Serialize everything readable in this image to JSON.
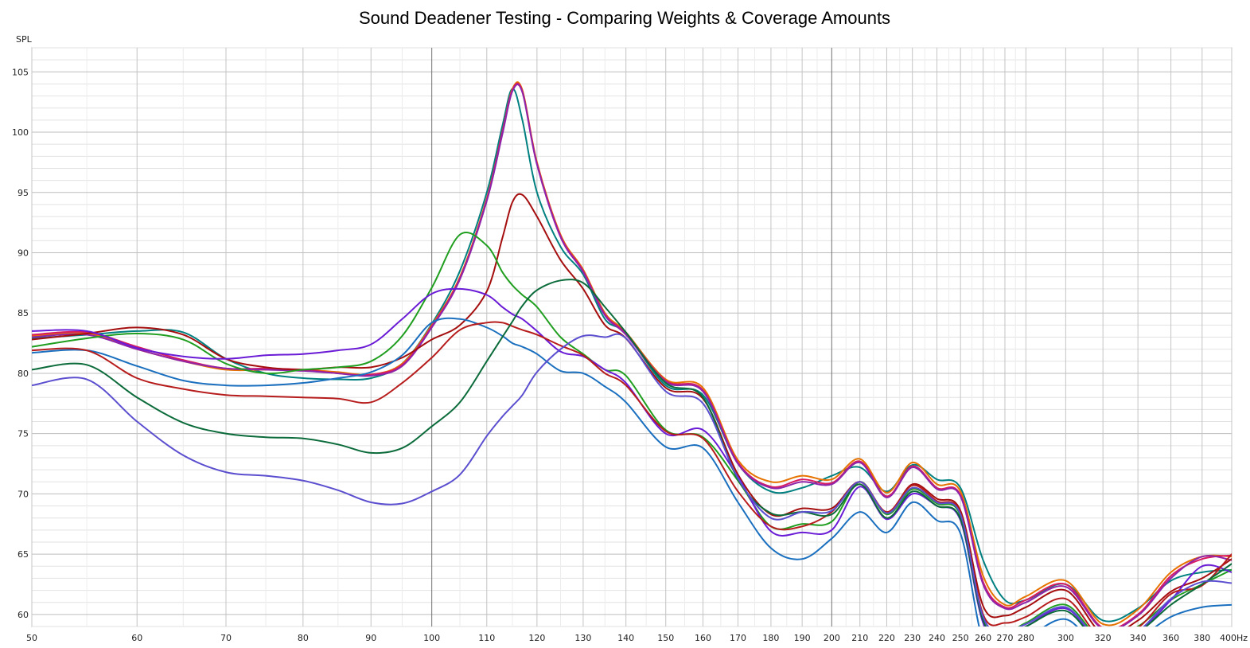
{
  "chart_data": {
    "type": "line",
    "title": "Sound Deadener Testing - Comparing Weights & Coverage Amounts",
    "ylabel": "SPL",
    "xunit": "Hz",
    "xscale": "log",
    "xlim": [
      50,
      400
    ],
    "ylim": [
      59,
      107
    ],
    "grid": true,
    "x_ticks": [
      50,
      60,
      70,
      80,
      90,
      100,
      110,
      120,
      130,
      140,
      150,
      160,
      170,
      180,
      190,
      200,
      210,
      220,
      230,
      240,
      250,
      260,
      270,
      280,
      300,
      320,
      340,
      360,
      380,
      400
    ],
    "x_tick_labels": [
      "50",
      "60",
      "70",
      "80",
      "90",
      "100",
      "110",
      "120",
      "130",
      "140",
      "150",
      "160",
      "170",
      "180",
      "190",
      "200",
      "210",
      "220",
      "230",
      "240",
      "250",
      "260",
      "270",
      "280",
      "300",
      "320",
      "340",
      "360",
      "380",
      "400Hz"
    ],
    "y_ticks": [
      60,
      65,
      70,
      75,
      80,
      85,
      90,
      95,
      100,
      105
    ],
    "series": [
      {
        "color": "#008080",
        "x": [
          50,
          55,
          60,
          65,
          70,
          75,
          80,
          85,
          90,
          95,
          100,
          105,
          110,
          113,
          115,
          117,
          120,
          125,
          130,
          135,
          140,
          150,
          160,
          170,
          180,
          190,
          200,
          210,
          220,
          230,
          240,
          250,
          260,
          270,
          280,
          300,
          320,
          340,
          360,
          380,
          400
        ],
        "y": [
          82.9,
          83.2,
          83.5,
          83.4,
          81.2,
          80.0,
          79.6,
          79.5,
          79.6,
          80.8,
          84.1,
          88.5,
          95.0,
          100.5,
          103.6,
          101.0,
          95.0,
          90.5,
          88.2,
          84.5,
          83.3,
          79.0,
          78.2,
          72.5,
          70.2,
          70.5,
          71.5,
          72.2,
          70.2,
          72.4,
          71.2,
          70.5,
          64.5,
          61.2,
          61.2,
          62.5,
          59.5,
          60.5,
          62.8,
          63.5,
          63.7
        ]
      },
      {
        "color": "#e67300",
        "x": [
          50,
          55,
          60,
          65,
          70,
          75,
          80,
          85,
          90,
          95,
          100,
          105,
          110,
          113,
          115,
          117,
          120,
          125,
          130,
          135,
          140,
          150,
          160,
          170,
          180,
          190,
          200,
          210,
          220,
          230,
          240,
          250,
          260,
          270,
          280,
          300,
          320,
          340,
          360,
          380,
          400
        ],
        "y": [
          83.1,
          83.3,
          82.0,
          81.0,
          80.3,
          80.3,
          80.3,
          80.1,
          79.9,
          80.8,
          84.0,
          88.0,
          94.5,
          100.0,
          103.6,
          103.5,
          97.5,
          91.5,
          88.6,
          85.0,
          83.4,
          79.5,
          78.8,
          72.8,
          71.0,
          71.5,
          71.2,
          72.9,
          70.1,
          72.6,
          70.8,
          70.2,
          63.2,
          60.8,
          61.5,
          62.8,
          59.2,
          60.4,
          63.5,
          64.8,
          64.8
        ]
      },
      {
        "color": "#d81b60",
        "x": [
          50,
          55,
          60,
          65,
          70,
          75,
          80,
          85,
          90,
          95,
          100,
          105,
          110,
          113,
          115,
          117,
          120,
          125,
          130,
          135,
          140,
          150,
          160,
          170,
          180,
          190,
          200,
          210,
          220,
          230,
          240,
          250,
          260,
          270,
          280,
          300,
          320,
          340,
          360,
          380,
          400
        ],
        "y": [
          83.2,
          83.4,
          82.2,
          81.1,
          80.4,
          80.4,
          80.3,
          80.0,
          79.9,
          80.7,
          83.9,
          87.9,
          94.4,
          100.0,
          103.5,
          103.4,
          97.4,
          91.4,
          88.5,
          84.9,
          83.3,
          79.4,
          78.6,
          72.6,
          70.6,
          71.2,
          70.9,
          72.7,
          69.8,
          72.3,
          70.5,
          69.9,
          62.7,
          60.6,
          61.2,
          62.5,
          58.9,
          60.0,
          63.2,
          64.6,
          64.9
        ]
      },
      {
        "color": "#8e24aa",
        "x": [
          50,
          55,
          60,
          65,
          70,
          75,
          80,
          85,
          90,
          95,
          100,
          105,
          110,
          113,
          115,
          117,
          120,
          125,
          130,
          135,
          140,
          150,
          160,
          170,
          180,
          190,
          200,
          210,
          220,
          230,
          240,
          250,
          260,
          270,
          280,
          300,
          320,
          340,
          360,
          380,
          400
        ],
        "y": [
          83.0,
          83.2,
          82.0,
          81.0,
          80.4,
          80.3,
          80.2,
          80.0,
          79.8,
          80.6,
          83.8,
          87.8,
          94.3,
          99.8,
          103.4,
          103.3,
          97.3,
          91.3,
          88.4,
          84.8,
          83.2,
          79.3,
          78.5,
          72.5,
          70.5,
          71.0,
          70.8,
          72.6,
          69.7,
          72.2,
          70.4,
          69.8,
          62.5,
          60.5,
          61.0,
          62.3,
          58.8,
          59.9,
          63.0,
          64.8,
          64.5
        ]
      },
      {
        "color": "#a50e0e",
        "x": [
          50,
          55,
          60,
          65,
          70,
          75,
          80,
          85,
          90,
          95,
          100,
          105,
          110,
          113,
          115,
          117,
          120,
          125,
          130,
          135,
          140,
          150,
          160,
          170,
          180,
          190,
          200,
          210,
          220,
          230,
          240,
          250,
          260,
          270,
          280,
          300,
          320,
          340,
          360,
          380,
          400
        ],
        "y": [
          82.8,
          83.3,
          83.8,
          83.2,
          81.2,
          80.5,
          80.3,
          80.5,
          80.5,
          81.3,
          82.8,
          84.0,
          86.8,
          91.2,
          94.2,
          94.8,
          93.0,
          89.4,
          87.0,
          84.0,
          82.9,
          78.8,
          77.9,
          71.6,
          68.3,
          68.8,
          68.8,
          71.0,
          68.4,
          70.8,
          69.6,
          68.6,
          60.7,
          59.9,
          60.6,
          62.0,
          58.4,
          59.5,
          61.9,
          63.0,
          64.6
        ]
      },
      {
        "color": "#1f9e1f",
        "x": [
          50,
          55,
          60,
          65,
          70,
          75,
          80,
          85,
          90,
          95,
          100,
          105,
          110,
          113,
          115,
          117,
          120,
          125,
          130,
          135,
          140,
          150,
          160,
          170,
          180,
          190,
          200,
          210,
          220,
          230,
          240,
          250,
          260,
          270,
          280,
          300,
          320,
          340,
          360,
          380,
          400
        ],
        "y": [
          82.2,
          82.9,
          83.3,
          82.8,
          80.8,
          80.0,
          80.3,
          80.5,
          81.0,
          83.1,
          87.1,
          91.5,
          90.6,
          88.4,
          87.3,
          86.5,
          85.5,
          83.0,
          81.6,
          80.3,
          79.8,
          75.3,
          74.7,
          71.1,
          67.3,
          67.5,
          67.7,
          71.0,
          68.3,
          70.4,
          69.2,
          68.2,
          59.8,
          58.5,
          59.3,
          60.8,
          57.8,
          59.0,
          61.2,
          62.5,
          63.7
        ]
      },
      {
        "color": "#6a1bd6",
        "x": [
          50,
          55,
          60,
          65,
          70,
          75,
          80,
          85,
          90,
          95,
          100,
          105,
          110,
          113,
          115,
          117,
          120,
          125,
          130,
          135,
          140,
          150,
          160,
          170,
          180,
          190,
          200,
          210,
          220,
          230,
          240,
          250,
          260,
          270,
          280,
          300,
          320,
          340,
          360,
          380,
          400
        ],
        "y": [
          83.5,
          83.5,
          82.1,
          81.4,
          81.2,
          81.5,
          81.6,
          81.9,
          82.4,
          84.5,
          86.6,
          87.0,
          86.5,
          85.5,
          84.9,
          84.5,
          83.5,
          81.8,
          81.4,
          80.3,
          79.2,
          75.0,
          75.3,
          71.4,
          66.9,
          66.8,
          67.0,
          70.6,
          67.9,
          70.0,
          69.0,
          67.8,
          59.3,
          58.2,
          59.0,
          60.5,
          57.5,
          58.5,
          61.2,
          64.0,
          63.5
        ]
      },
      {
        "color": "#1a6fbf",
        "x": [
          50,
          55,
          60,
          65,
          70,
          75,
          80,
          85,
          90,
          95,
          100,
          105,
          110,
          113,
          115,
          117,
          120,
          125,
          130,
          135,
          140,
          150,
          160,
          170,
          180,
          190,
          200,
          210,
          220,
          230,
          240,
          250,
          260,
          270,
          280,
          300,
          320,
          340,
          360,
          380,
          400
        ],
        "y": [
          81.7,
          81.9,
          80.6,
          79.4,
          79.0,
          79.0,
          79.2,
          79.6,
          80.1,
          81.5,
          84.2,
          84.5,
          83.8,
          83.1,
          82.5,
          82.2,
          81.6,
          80.2,
          80.0,
          78.9,
          77.6,
          73.9,
          73.8,
          69.3,
          65.5,
          64.6,
          66.3,
          68.5,
          66.8,
          69.3,
          67.8,
          66.7,
          57.8,
          57.4,
          58.0,
          59.6,
          56.9,
          58.0,
          59.8,
          60.6,
          60.8
        ]
      },
      {
        "color": "#b71c1c",
        "x": [
          50,
          55,
          60,
          65,
          70,
          75,
          80,
          85,
          90,
          95,
          100,
          105,
          110,
          113,
          115,
          117,
          120,
          125,
          130,
          135,
          140,
          150,
          160,
          170,
          180,
          190,
          200,
          210,
          220,
          230,
          240,
          250,
          260,
          270,
          280,
          300,
          320,
          340,
          360,
          380,
          400
        ],
        "y": [
          81.9,
          81.9,
          79.6,
          78.7,
          78.2,
          78.1,
          78.0,
          77.9,
          77.6,
          79.2,
          81.3,
          83.6,
          84.2,
          84.2,
          83.9,
          83.6,
          83.2,
          82.3,
          81.5,
          80.0,
          79.0,
          75.2,
          74.6,
          70.2,
          67.3,
          67.3,
          68.5,
          71.0,
          68.5,
          70.7,
          69.4,
          68.4,
          60.0,
          59.3,
          59.8,
          61.3,
          57.9,
          58.9,
          61.7,
          62.4,
          65.0
        ]
      },
      {
        "color": "#0b6b3a",
        "x": [
          50,
          55,
          60,
          65,
          70,
          75,
          80,
          85,
          90,
          95,
          100,
          105,
          110,
          113,
          115,
          117,
          120,
          125,
          130,
          135,
          140,
          150,
          160,
          170,
          180,
          190,
          200,
          210,
          220,
          230,
          240,
          250,
          260,
          270,
          280,
          300,
          320,
          340,
          360,
          380,
          400
        ],
        "y": [
          80.3,
          80.7,
          78.0,
          75.9,
          75.0,
          74.7,
          74.6,
          74.1,
          73.4,
          73.8,
          75.6,
          77.6,
          81.0,
          83.0,
          84.3,
          85.6,
          86.9,
          87.7,
          87.5,
          85.5,
          83.4,
          79.2,
          78.0,
          71.2,
          68.4,
          68.5,
          68.3,
          70.8,
          68.0,
          70.2,
          69.0,
          67.9,
          59.5,
          58.2,
          59.0,
          60.3,
          57.4,
          58.5,
          60.8,
          62.5,
          64.2
        ]
      },
      {
        "color": "#5b4fcf",
        "x": [
          50,
          55,
          60,
          65,
          70,
          75,
          80,
          85,
          90,
          95,
          100,
          105,
          110,
          113,
          115,
          117,
          120,
          125,
          130,
          135,
          140,
          150,
          160,
          170,
          180,
          190,
          200,
          210,
          220,
          230,
          240,
          250,
          260,
          270,
          280,
          300,
          320,
          340,
          360,
          380,
          400
        ],
        "y": [
          79.0,
          79.5,
          76.0,
          73.2,
          71.8,
          71.5,
          71.1,
          70.3,
          69.3,
          69.2,
          70.2,
          71.6,
          74.8,
          76.4,
          77.3,
          78.2,
          80.1,
          82.0,
          83.1,
          83.0,
          82.9,
          78.5,
          77.5,
          71.3,
          68.0,
          68.5,
          68.6,
          71.0,
          68.4,
          70.5,
          69.3,
          68.3,
          59.8,
          58.6,
          59.2,
          60.6,
          57.6,
          58.6,
          61.3,
          62.7,
          62.6
        ]
      }
    ]
  }
}
